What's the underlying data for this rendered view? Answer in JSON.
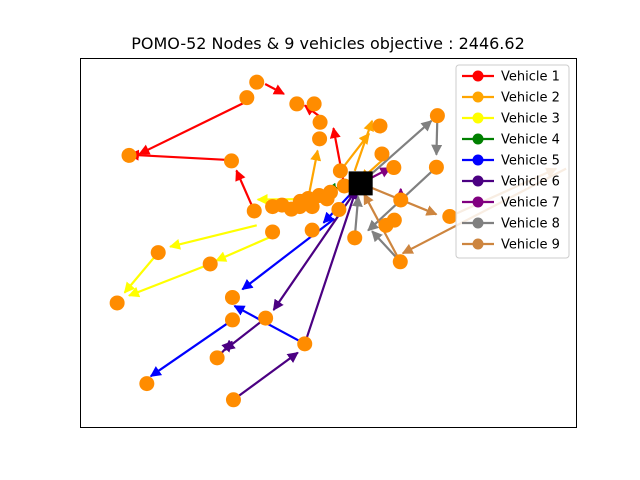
{
  "chart_data": {
    "type": "scatter",
    "title": "POMO-52 Nodes & 9 vehicles objective : 2446.62",
    "xlabel": "",
    "ylabel": "",
    "grid": false,
    "axis_ticks": false,
    "legend_position": "top-right",
    "depot": {
      "x": 0.565,
      "y": 0.662,
      "marker": "square",
      "color": "#000000"
    },
    "node_color": "#ff8c00",
    "nodes": [
      [
        0.355,
        0.937
      ],
      [
        0.335,
        0.895
      ],
      [
        0.436,
        0.878
      ],
      [
        0.471,
        0.878
      ],
      [
        0.483,
        0.828
      ],
      [
        0.482,
        0.783
      ],
      [
        0.604,
        0.818
      ],
      [
        0.608,
        0.742
      ],
      [
        0.632,
        0.705
      ],
      [
        0.72,
        0.846
      ],
      [
        0.718,
        0.706
      ],
      [
        0.304,
        0.723
      ],
      [
        0.097,
        0.738
      ],
      [
        0.524,
        0.696
      ],
      [
        0.35,
        0.587
      ],
      [
        0.387,
        0.599
      ],
      [
        0.406,
        0.603
      ],
      [
        0.425,
        0.592
      ],
      [
        0.443,
        0.613
      ],
      [
        0.459,
        0.621
      ],
      [
        0.481,
        0.629
      ],
      [
        0.504,
        0.638
      ],
      [
        0.532,
        0.655
      ],
      [
        0.442,
        0.599
      ],
      [
        0.467,
        0.599
      ],
      [
        0.497,
        0.62
      ],
      [
        0.521,
        0.591
      ],
      [
        0.646,
        0.617
      ],
      [
        0.745,
        0.572
      ],
      [
        0.633,
        0.562
      ],
      [
        0.616,
        0.548
      ],
      [
        0.387,
        0.53
      ],
      [
        0.467,
        0.535
      ],
      [
        0.553,
        0.514
      ],
      [
        0.645,
        0.449
      ],
      [
        0.156,
        0.474
      ],
      [
        0.261,
        0.443
      ],
      [
        0.073,
        0.337
      ],
      [
        0.306,
        0.352
      ],
      [
        0.306,
        0.291
      ],
      [
        0.373,
        0.296
      ],
      [
        0.275,
        0.188
      ],
      [
        0.133,
        0.118
      ],
      [
        0.308,
        0.074
      ],
      [
        0.452,
        0.226
      ]
    ],
    "series": [
      {
        "name": "Vehicle 1",
        "color": "#ff0000",
        "arrows": [
          [
            0.532,
            0.655,
            0.51,
            0.812
          ],
          [
            0.488,
            0.838,
            0.452,
            0.874
          ],
          [
            0.372,
            0.932,
            0.41,
            0.905
          ],
          [
            0.328,
            0.88,
            0.118,
            0.742
          ],
          [
            0.306,
            0.725,
            0.097,
            0.74
          ],
          [
            0.35,
            0.587,
            0.314,
            0.697
          ]
        ]
      },
      {
        "name": "Vehicle 2",
        "color": "#ffa500",
        "arrows": [
          [
            0.459,
            0.621,
            0.478,
            0.751
          ],
          [
            0.524,
            0.696,
            0.582,
            0.797
          ],
          [
            0.553,
            0.696,
            0.588,
            0.832
          ],
          [
            0.608,
            0.724,
            0.565,
            0.672
          ]
        ]
      },
      {
        "name": "Vehicle 3",
        "color": "#ffff00",
        "arrows": [
          [
            0.497,
            0.62,
            0.357,
            0.618
          ],
          [
            0.355,
            0.548,
            0.18,
            0.49
          ],
          [
            0.387,
            0.519,
            0.273,
            0.452
          ],
          [
            0.156,
            0.474,
            0.088,
            0.365
          ],
          [
            0.261,
            0.443,
            0.097,
            0.357
          ]
        ]
      },
      {
        "name": "Vehicle 4",
        "color": "#008000",
        "arrows": [
          [
            0.565,
            0.662,
            0.496,
            0.644
          ]
        ]
      },
      {
        "name": "Vehicle 5",
        "color": "#0000ff",
        "arrows": [
          [
            0.565,
            0.662,
            0.49,
            0.555
          ],
          [
            0.512,
            0.566,
            0.326,
            0.374
          ],
          [
            0.452,
            0.226,
            0.31,
            0.329
          ],
          [
            0.306,
            0.291,
            0.141,
            0.138
          ]
        ]
      },
      {
        "name": "Vehicle 6",
        "color": "#4b0082",
        "arrows": [
          [
            0.565,
            0.662,
            0.389,
            0.318
          ],
          [
            0.275,
            0.188,
            0.305,
            0.232
          ],
          [
            0.308,
            0.074,
            0.438,
            0.202
          ],
          [
            0.452,
            0.226,
            0.556,
            0.646
          ],
          [
            0.373,
            0.296,
            0.29,
            0.209
          ]
        ]
      },
      {
        "name": "Vehicle 7",
        "color": "#800080",
        "arrows": [
          [
            0.565,
            0.662,
            0.625,
            0.704
          ],
          [
            0.646,
            0.617,
            0.646,
            0.647
          ]
        ]
      },
      {
        "name": "Vehicle 8",
        "color": "#808080",
        "arrows": [
          [
            0.565,
            0.662,
            0.708,
            0.832
          ],
          [
            0.72,
            0.846,
            0.718,
            0.74
          ],
          [
            0.718,
            0.706,
            0.58,
            0.534
          ],
          [
            0.645,
            0.449,
            0.588,
            0.532
          ],
          [
            0.553,
            0.514,
            0.56,
            0.626
          ]
        ]
      },
      {
        "name": "Vehicle 9",
        "color": "#cd853f",
        "arrows": [
          [
            0.565,
            0.662,
            0.718,
            0.578
          ],
          [
            0.745,
            0.572,
            0.96,
            0.702
          ],
          [
            0.98,
            0.702,
            0.65,
            0.472
          ],
          [
            0.645,
            0.449,
            0.572,
            0.633
          ]
        ]
      }
    ]
  }
}
